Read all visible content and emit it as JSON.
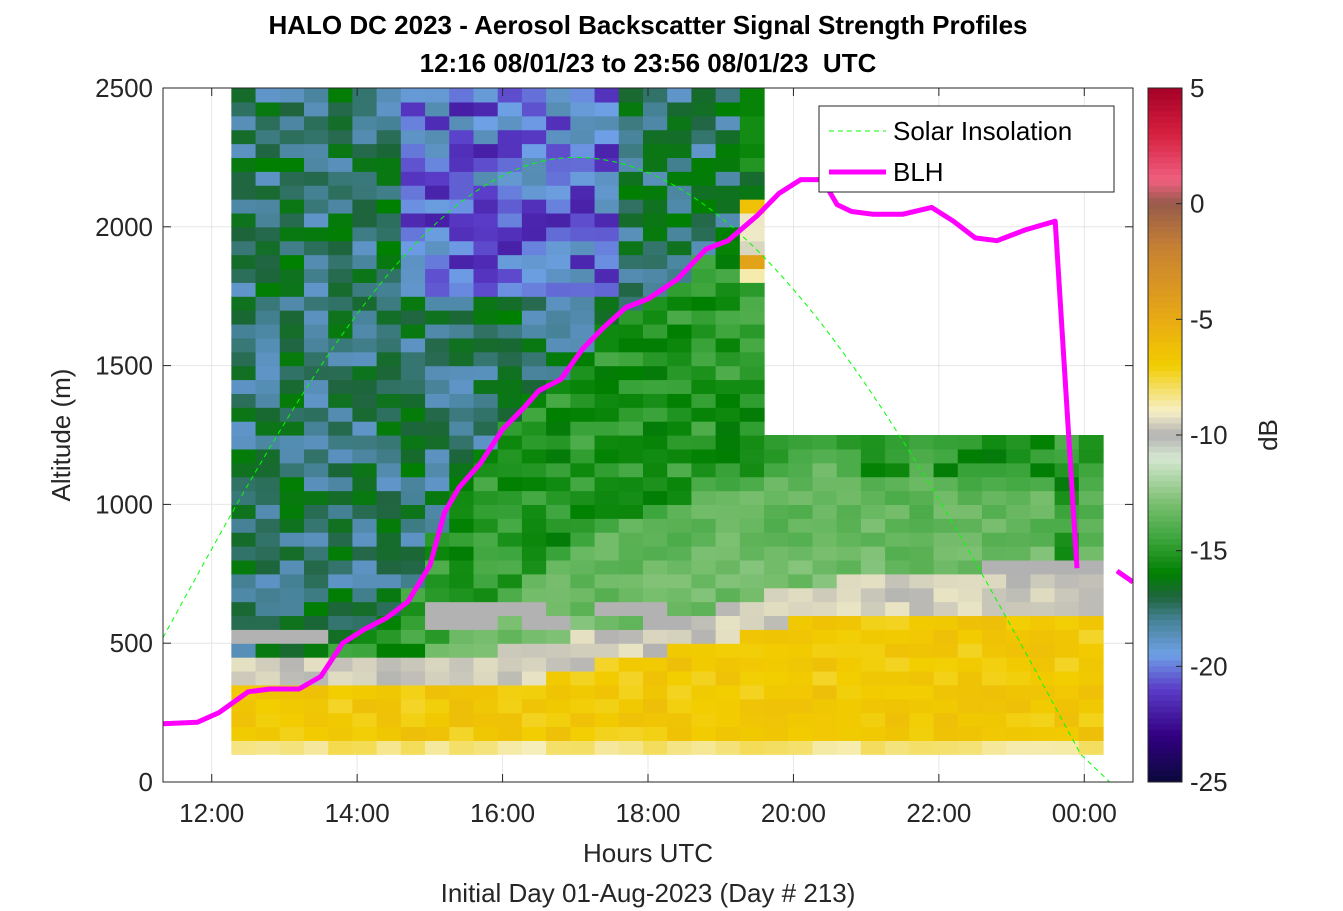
{
  "chart_data": {
    "type": "heatmap",
    "title": "HALO DC 2023 - Aerosol Backscatter Signal Strength Profiles",
    "subtitle": "12:16 08/01/23 to 23:56 08/01/23  UTC",
    "xlabel": "Hours UTC",
    "xlabel2": "Initial Day 01-Aug-2023 (Day # 213)",
    "ylabel": "Altitude (m)",
    "xlim": [
      11.33,
      24.67
    ],
    "ylim": [
      0,
      2500
    ],
    "x_ticks": [
      12,
      14,
      16,
      18,
      20,
      22,
      24
    ],
    "x_tick_labels": [
      "12:00",
      "14:00",
      "16:00",
      "18:00",
      "20:00",
      "22:00",
      "00:00"
    ],
    "y_ticks": [
      0,
      500,
      1000,
      1500,
      2000,
      2500
    ],
    "y_tick_labels": [
      "0",
      "500",
      "1000",
      "1500",
      "2000",
      "2500"
    ],
    "colorbar": {
      "label": "dB",
      "range": [
        -25,
        5
      ],
      "ticks": [
        5,
        0,
        -5,
        -10,
        -15,
        -20,
        -25
      ],
      "tick_labels": [
        "5",
        "0",
        "-5",
        "-10",
        "-15",
        "-20",
        "-25"
      ]
    },
    "grid": true,
    "legend": {
      "placement": "top-right",
      "entries": [
        "Solar Insolation",
        "BLH"
      ]
    },
    "heatmap": {
      "x_start": 12.27,
      "x_step": 0.333,
      "y_start": 100,
      "y_step": 50,
      "value_rule": "dB estimated per cell from the colormap; null marks the grey gaps",
      "columns_ordered": "time ascending; each column lists altitudes 100..2500 in 50 m bins"
    },
    "series": [
      {
        "name": "BLH",
        "color": "#ff00ff",
        "x": [
          11.33,
          11.8,
          12.1,
          12.5,
          12.8,
          13.2,
          13.5,
          13.8,
          14.1,
          14.4,
          14.7,
          15.0,
          15.2,
          15.4,
          15.7,
          16.0,
          16.3,
          16.5,
          16.8,
          17.1,
          17.4,
          17.7,
          18.0,
          18.4,
          18.8,
          19.1,
          19.5,
          19.8,
          20.1,
          20.4,
          20.6,
          20.8,
          21.1,
          21.5,
          21.9,
          22.2,
          22.5,
          22.8,
          23.2,
          23.6,
          23.9,
          24.2,
          24.45,
          24.67
        ],
        "y": [
          210,
          215,
          250,
          325,
          335,
          335,
          380,
          500,
          550,
          590,
          650,
          780,
          970,
          1060,
          1150,
          1270,
          1350,
          1410,
          1450,
          1560,
          1640,
          1710,
          1740,
          1810,
          1920,
          1950,
          2040,
          2120,
          2170,
          2170,
          2080,
          2055,
          2045,
          2045,
          2070,
          2020,
          1960,
          1950,
          1990,
          2020,
          770,
          null,
          760,
          720
        ]
      },
      {
        "name": "Solar Insolation",
        "color": "#00ff00",
        "style": "dashed",
        "model": "sine arc",
        "x": [
          11.33,
          17.0,
          23.95,
          24.35,
          24.67
        ],
        "y": [
          520,
          2250,
          100,
          0,
          0
        ]
      }
    ]
  }
}
